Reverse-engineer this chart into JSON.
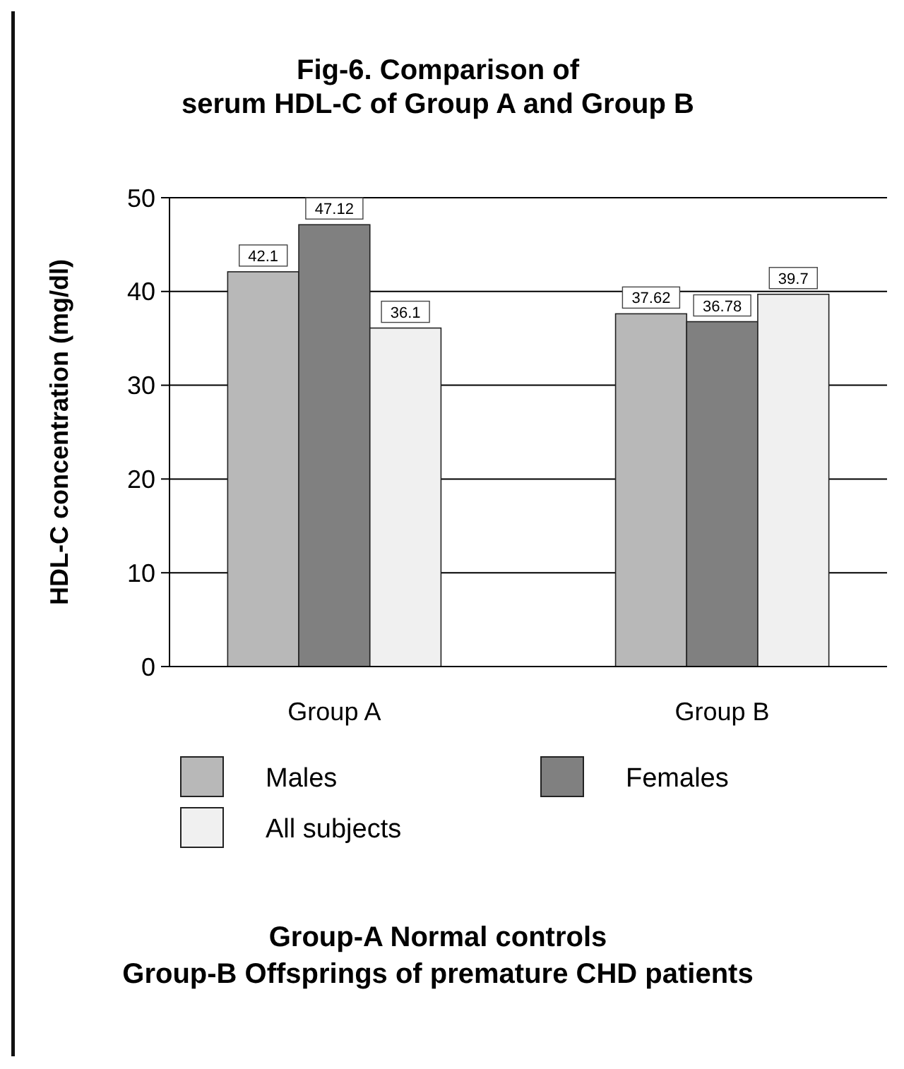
{
  "chart_data": {
    "type": "bar",
    "title": "Fig-6. Comparison of serum HDL-C of Group A and Group B",
    "ylabel": "HDL-C concentration (mg/dl)",
    "categories": [
      "Group A",
      "Group B"
    ],
    "series": [
      {
        "name": "Males",
        "color": "#b8b8b8",
        "values": [
          42.1,
          37.62
        ]
      },
      {
        "name": "Females",
        "color": "#808080",
        "values": [
          47.12,
          36.78
        ]
      },
      {
        "name": "All subjects",
        "color": "#f0f0f0",
        "values": [
          36.1,
          39.7
        ]
      }
    ],
    "ylim": [
      0,
      50
    ],
    "yticks": [
      0,
      10,
      20,
      30,
      40,
      50
    ],
    "grid": "y",
    "data_labels": true,
    "legend": "bottom",
    "annotations": [
      "Group-A Normal controls",
      "Group-B Offsprings of premature CHD patients"
    ]
  }
}
